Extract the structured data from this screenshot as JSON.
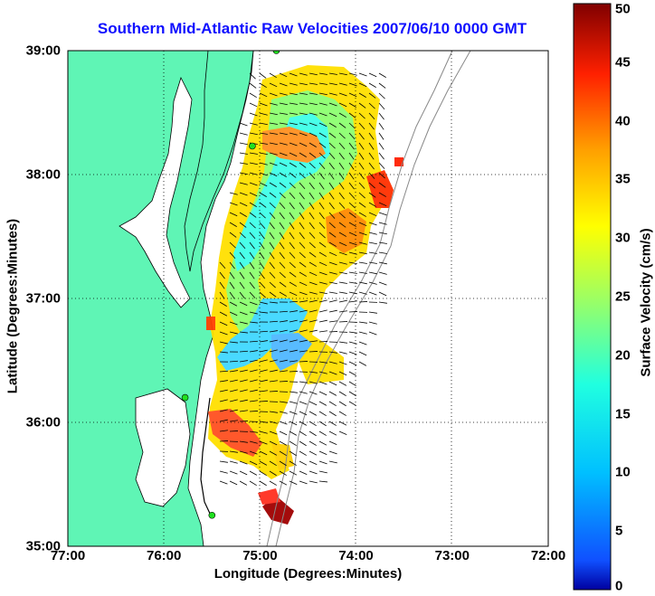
{
  "title": "Southern Mid-Atlantic Raw Velocities 2007/06/10 0000 GMT",
  "x_axis": {
    "label": "Longitude (Degrees:Minutes)",
    "ticks": [
      "77:00",
      "76:00",
      "75:00",
      "74:00",
      "73:00",
      "72:00"
    ],
    "values": [
      -77,
      -76,
      -75,
      -74,
      -73,
      -72
    ]
  },
  "y_axis": {
    "label": "Latitude (Degrees:Minutes)",
    "ticks": [
      "35:00",
      "36:00",
      "37:00",
      "38:00",
      "39:00"
    ],
    "values": [
      35,
      36,
      37,
      38,
      39
    ]
  },
  "colorbar": {
    "label": "Surface Velocity (cm/s)",
    "ticks": [
      "0",
      "5",
      "10",
      "15",
      "20",
      "25",
      "30",
      "35",
      "40",
      "45",
      "50"
    ],
    "range": [
      0,
      50
    ],
    "colormap": "jet"
  },
  "map": {
    "land_color": "#5ff5b5",
    "grid": "dotted",
    "lon_range": [
      -77,
      -72
    ],
    "lat_range": [
      35,
      39
    ],
    "stations": [
      {
        "lon": -74.83,
        "lat": 39.0
      },
      {
        "lon": -75.08,
        "lat": 38.23
      },
      {
        "lon": -75.78,
        "lat": 36.2
      },
      {
        "lon": -75.5,
        "lat": 35.25
      }
    ]
  }
}
